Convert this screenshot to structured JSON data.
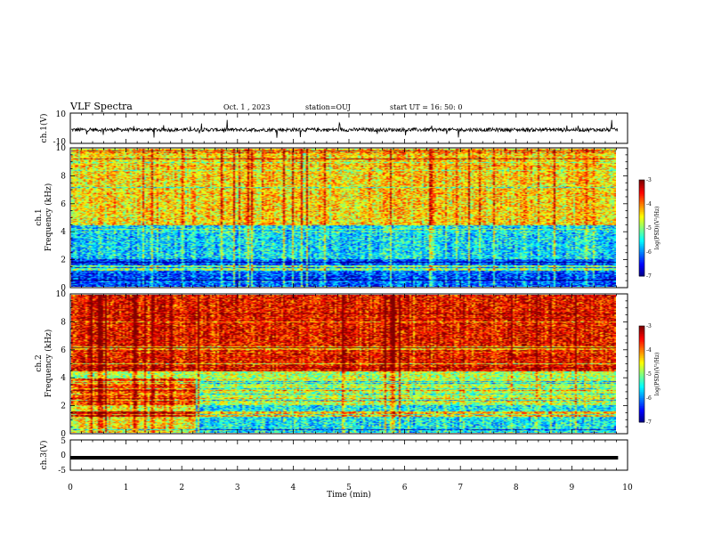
{
  "header": {
    "title": "VLF Spectra",
    "date": "Oct. 1  , 2023",
    "station": "station=OUJ",
    "start": "start  UT  =   16: 50: 0"
  },
  "chart_data": [
    {
      "type": "line",
      "id": "ch1-waveform",
      "ylabel": "ch.1(V)",
      "ylim": [
        -10,
        10
      ],
      "yticks": [
        "10",
        "-10"
      ],
      "xlim": [
        0,
        10
      ],
      "xlabel": "",
      "baseline": -1.0,
      "noise_amplitude": 1.2,
      "data_extent_min": 9.83
    },
    {
      "type": "heatmap",
      "id": "ch1-spectrogram",
      "ylabel": "ch.1\nFrequency (kHz)",
      "ylim": [
        0,
        10
      ],
      "yticks": [
        "0",
        "2",
        "4",
        "6",
        "8",
        "10"
      ],
      "xlim": [
        0,
        10
      ],
      "colorbar": {
        "label": "log(PSD)(V²/Hz)",
        "ticks": [
          "-3",
          "-4",
          "-5",
          "-6",
          "-7"
        ],
        "range": [
          -7,
          -3
        ]
      },
      "profile": {
        "high_band_level": -4.4,
        "mid_band_level": -5.6,
        "low_band_level": -6.2
      }
    },
    {
      "type": "heatmap",
      "id": "ch2-spectrogram",
      "ylabel": "ch.2\nFrequency (kHz)",
      "ylim": [
        0,
        10
      ],
      "yticks": [
        "0",
        "2",
        "4",
        "6",
        "8",
        "10"
      ],
      "xlim": [
        0,
        10
      ],
      "colorbar": {
        "label": "log(PSD)(V²/Hz)",
        "ticks": [
          "-3",
          "-4",
          "-5",
          "-6",
          "-7"
        ],
        "range": [
          -7,
          -3
        ]
      },
      "profile": {
        "high_band_level": -3.5,
        "mid_band_level": -4.8,
        "low_band_level": -5.5
      }
    },
    {
      "type": "line",
      "id": "ch3-waveform",
      "ylabel": "ch.3(V)",
      "ylim": [
        -5,
        5
      ],
      "yticks": [
        "5",
        "0",
        "-5"
      ],
      "xlim": [
        0,
        10
      ],
      "xlabel": "Time  (min)",
      "xticks": [
        "0",
        "1",
        "2",
        "3",
        "4",
        "5",
        "6",
        "7",
        "8",
        "9",
        "10"
      ],
      "values": {
        "x": [
          0,
          9.83
        ],
        "y": [
          -0.9,
          -0.9
        ]
      }
    }
  ]
}
